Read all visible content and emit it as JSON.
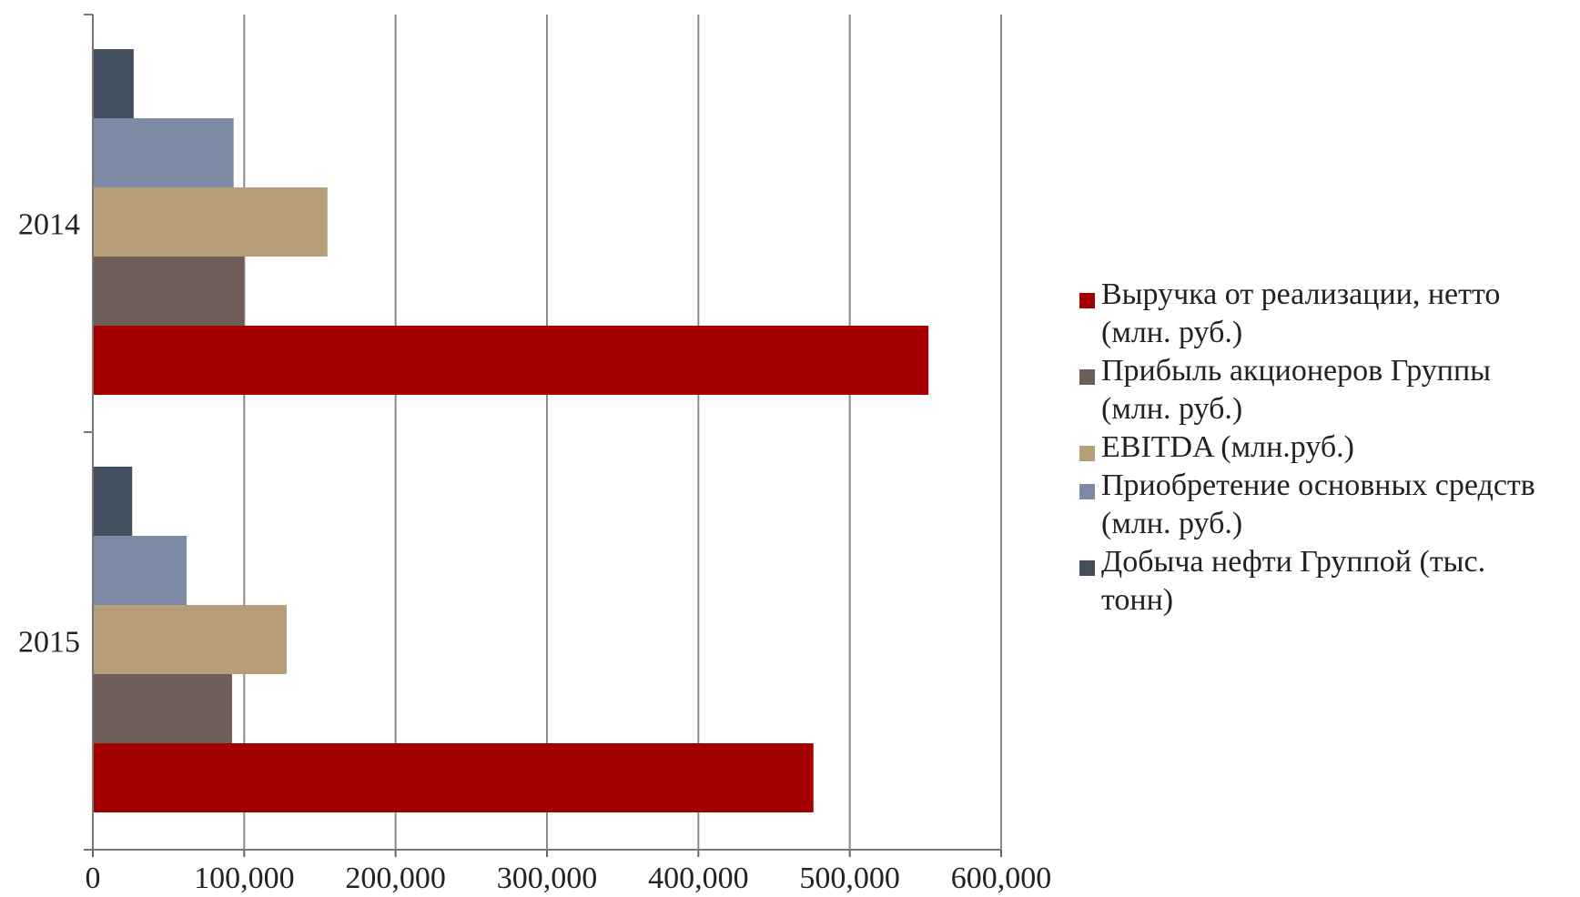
{
  "chart_data": {
    "type": "bar",
    "orientation": "horizontal",
    "categories": [
      "2014",
      "2015"
    ],
    "series": [
      {
        "name": "Выручка от реализации, нетто (млн. руб.)",
        "name_lines": [
          "Выручка от реализации, нетто",
          "(млн. руб.)"
        ],
        "values": [
          552000,
          476000
        ],
        "color": "#A50000"
      },
      {
        "name": "Прибыль акционеров Группы (млн. руб.)",
        "name_lines": [
          "Прибыль акционеров Группы",
          "(млн. руб.)"
        ],
        "values": [
          100000,
          92000
        ],
        "color": "#6F5E58"
      },
      {
        "name": "EBITDA (млн.руб.)",
        "name_lines": [
          "EBITDA (млн.руб.)"
        ],
        "values": [
          155000,
          128000
        ],
        "color": "#B69E78"
      },
      {
        "name": "Приобретение основных средств (млн. руб.)",
        "name_lines": [
          "Приобретение основных средств",
          "(млн. руб.)"
        ],
        "values": [
          93000,
          62000
        ],
        "color": "#7D8AA6"
      },
      {
        "name": "Добыча нефти Группой (тыс. тонн)",
        "name_lines": [
          "Добыча нефти Группой (тыс.",
          "тонн)"
        ],
        "values": [
          27000,
          26000
        ],
        "color": "#434F5F"
      }
    ],
    "xlim": [
      0,
      600000
    ],
    "xticks": [
      "0",
      "100,000",
      "200,000",
      "300,000",
      "400,000",
      "500,000",
      "600,000"
    ],
    "grid": true,
    "legend_position": "right"
  }
}
